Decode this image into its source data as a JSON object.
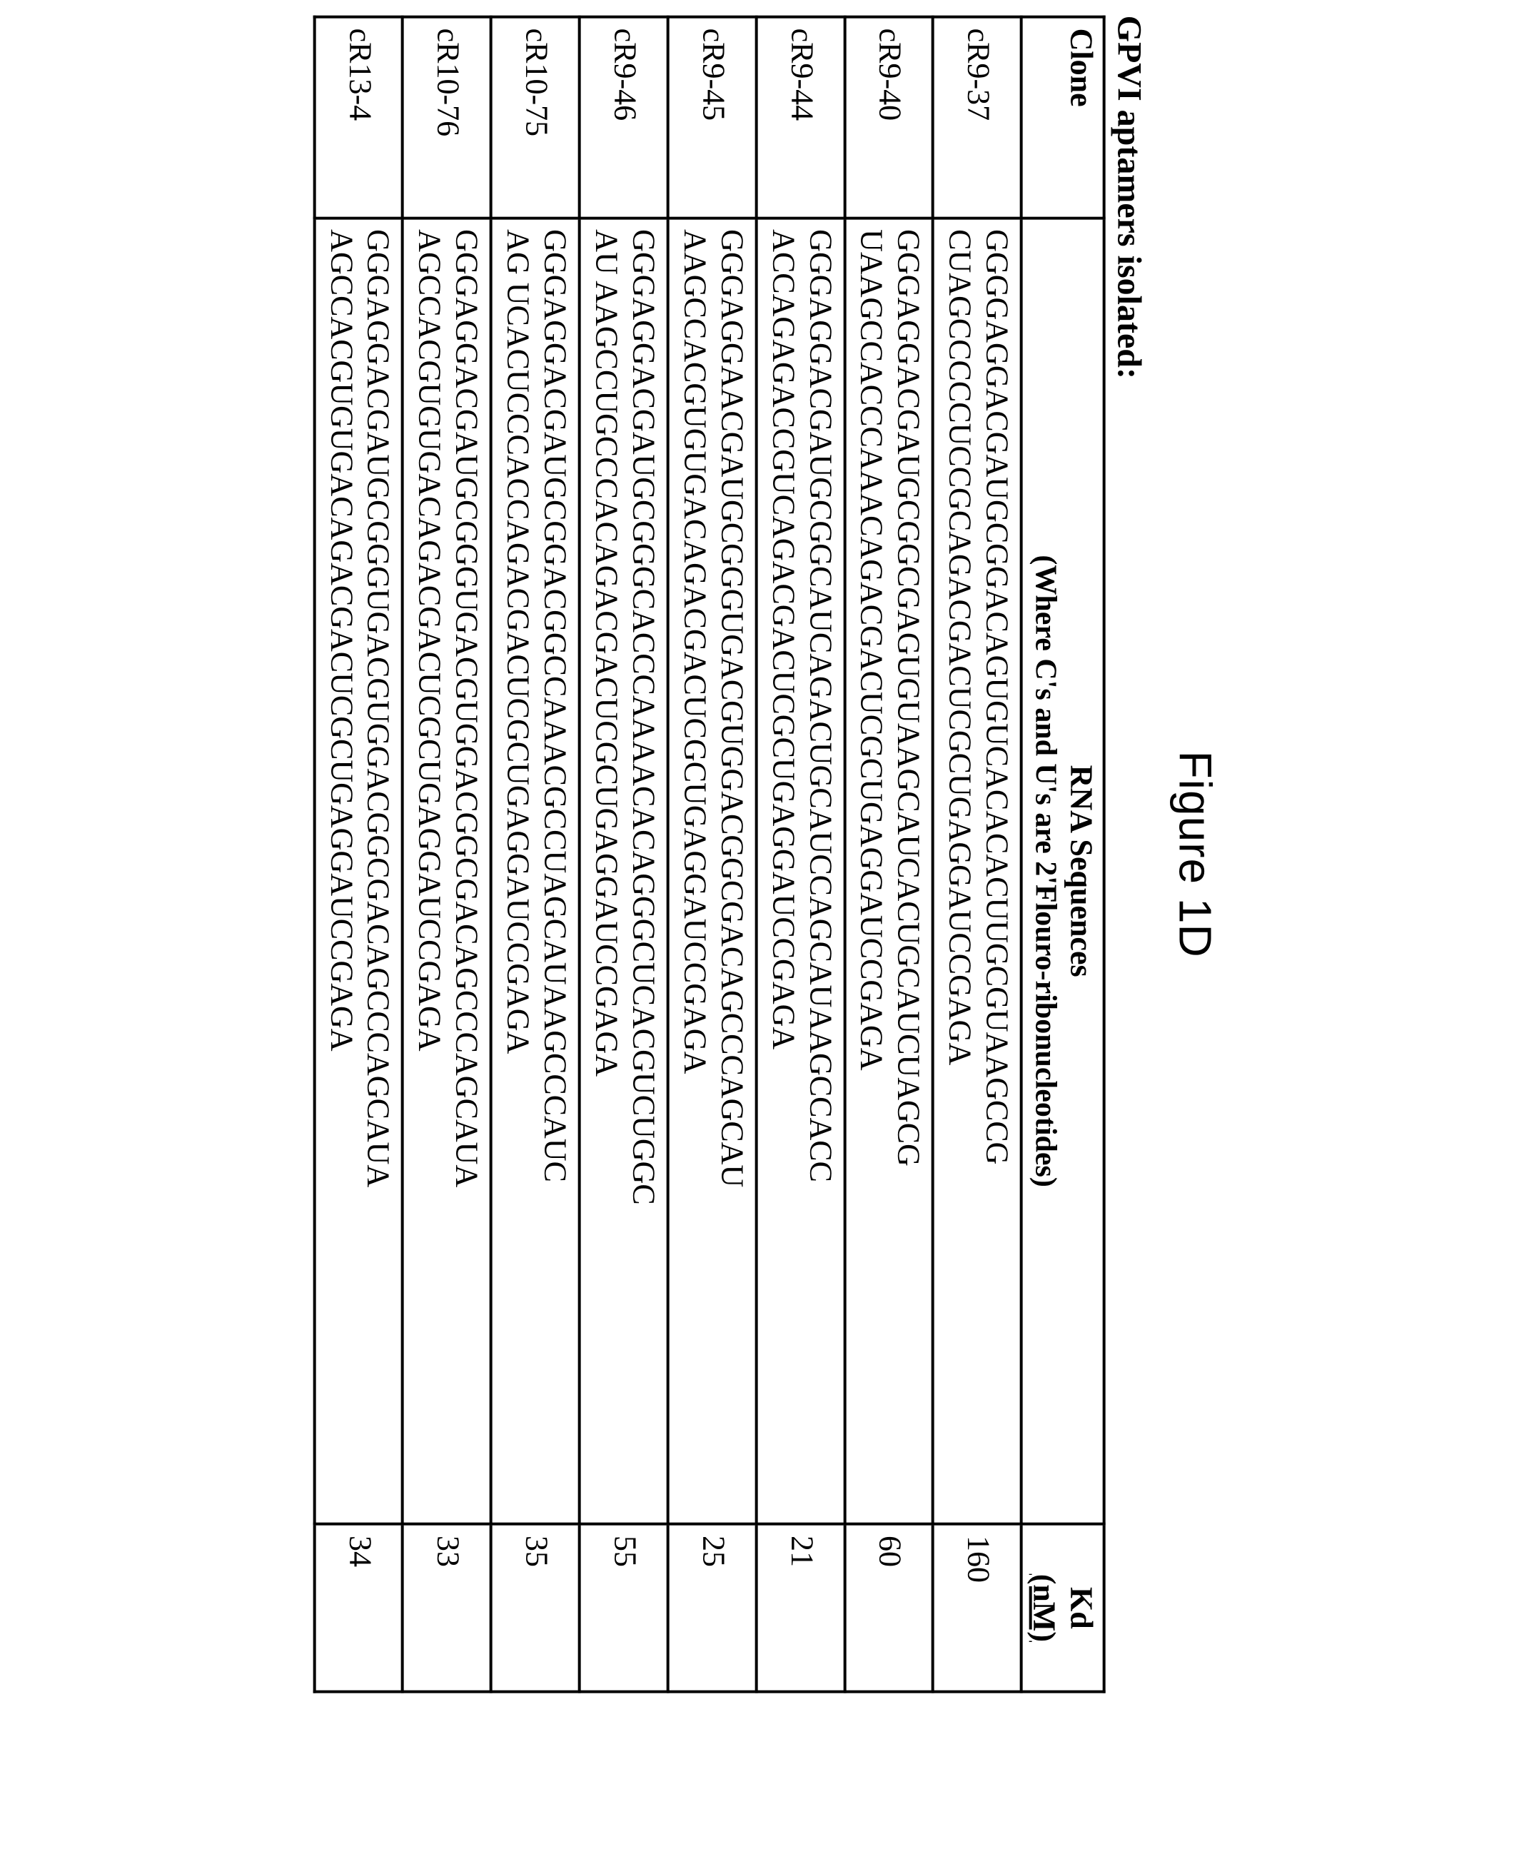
{
  "figure_title": "Figure 1D",
  "table_caption": "GPVI aptamers isolated:",
  "headers": {
    "clone": "Clone",
    "seq_main": "RNA Sequences",
    "seq_sub": "(Where C's and U's are 2'Flouro-ribonucleotides)",
    "kd_main": "Kd",
    "kd_unit": "(nM)"
  },
  "rows": [
    {
      "clone": "cR9-37",
      "seq_l1": "GGGGAGGACGAUGCGGACAGUGUCACACACUUGCGUAAGCCG",
      "seq_l2": "CUAGCCCCCUCCGCAGACGACUCGCUGAGGAUCCGAGA",
      "kd": "160"
    },
    {
      "clone": "cR9-40",
      "seq_l1": "GGGAGGACGAUGCGGCGAGUGUAAGCAUCACUGCAUCUAGCG",
      "seq_l2": "UAAGCCACCCAAACAGACGACUCGCUGAGGAUCCGAGA",
      "kd": "60"
    },
    {
      "clone": "cR9-44",
      "seq_l1": "GGGAGGACGAUGCGGCAUCAGACUGCAUCCAGCAUAAGCCACC",
      "seq_l2": "ACCAGAGACCGUCAGACGACUCGCUGAGGAUCCGAGA",
      "kd": "21"
    },
    {
      "clone": "cR9-45",
      "seq_l1": "GGGAGGAACGAUGCGGGUGACGUGGACGGCGACAGCCCAGCAU",
      "seq_l2": "AAGCCACGUGUGACAGACGACUCGCUGAGGAUCCGAGA",
      "kd": "25"
    },
    {
      "clone": "cR9-46",
      "seq_l1": "GGGAGGACGAUGCGGGCACCCAAAACACAGGGCUCACGUCUGGC",
      "seq_l2": "AU AAGCCUGCCCACAGACGACUCGCUGAGGAUCCGAGA",
      "kd": "55"
    },
    {
      "clone": "cR10-75",
      "seq_l1": "GGGAGGACGAUGCGGACGGCCAAACGCCUAGCAUAAGCCCAUC",
      "seq_l2": "AG UCACUCCCACCAGACGACUCGCUGAGGAUCCGAGA",
      "kd": "35"
    },
    {
      "clone": "cR10-76",
      "seq_l1": "GGGAGGACGAUGCGGGUGACGUGGACGGCGACAGCCCAGCAUA",
      "seq_l2": "AGCCACGUGUGACAGACGACUCGCUGAGGAUCCGAGA",
      "kd": "33"
    },
    {
      "clone": "cR13-4",
      "seq_l1": "GGGAGGACGAUGCGGGUGACGUGGACGGCGACAGCCCAGCAUA",
      "seq_l2": "AGCCACGUGUGACAGACGACUCGCUGAGGAUCCGAGA",
      "kd": "34"
    }
  ]
}
